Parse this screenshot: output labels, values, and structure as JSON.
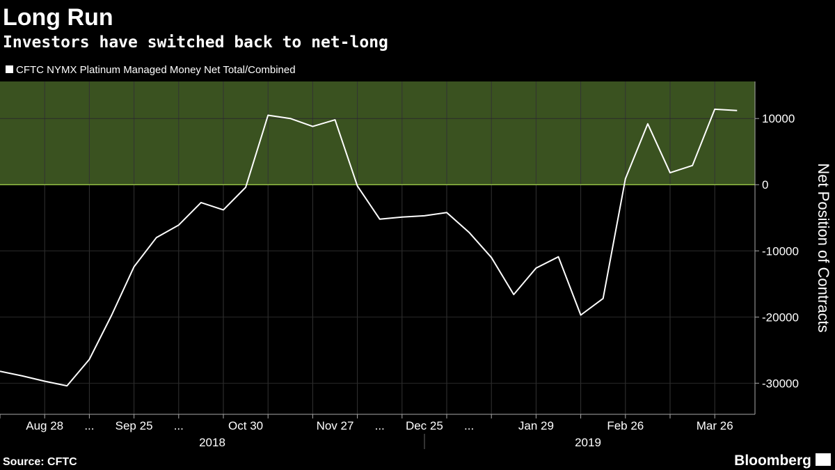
{
  "chart_data": {
    "type": "line",
    "title": "Long Run",
    "subtitle": "Investors have switched back to net-long",
    "y_axis_label": "Net Position of Contracts",
    "source": "Source: CFTC",
    "brand": "Bloomberg",
    "categories": [
      null,
      null,
      "Aug 28",
      null,
      "...",
      null,
      "Sep 25",
      null,
      "...",
      null,
      null,
      "Oct 30",
      null,
      null,
      null,
      "Nov 27",
      null,
      "...",
      null,
      "Dec 25",
      null,
      "...",
      null,
      null,
      "Jan 29",
      null,
      null,
      null,
      "Feb 26",
      null,
      null,
      null,
      "Mar 26",
      null
    ],
    "x_groups": [
      "2018",
      "2019"
    ],
    "series": [
      {
        "name": "CFTC NYMX Platinum Managed Money Net Total/Combined",
        "color": "#ffffff",
        "values": [
          -28200,
          -28900,
          -29700,
          -30400,
          -26400,
          -19700,
          -12400,
          -8000,
          -6100,
          -2700,
          -3800,
          -400,
          10500,
          10000,
          8800,
          9800,
          -200,
          -5200,
          -4900,
          -4700,
          -4200,
          -7200,
          -11000,
          -16600,
          -12600,
          -10900,
          -19700,
          -17200,
          900,
          9200,
          1800,
          2900,
          11400,
          11200
        ]
      }
    ],
    "ylim": [
      -34700,
      15600
    ],
    "yticks": [
      -30000,
      -20000,
      -10000,
      0,
      10000
    ],
    "positive_fill": "#3a5220",
    "zero_line_color": "#a6d84a"
  }
}
